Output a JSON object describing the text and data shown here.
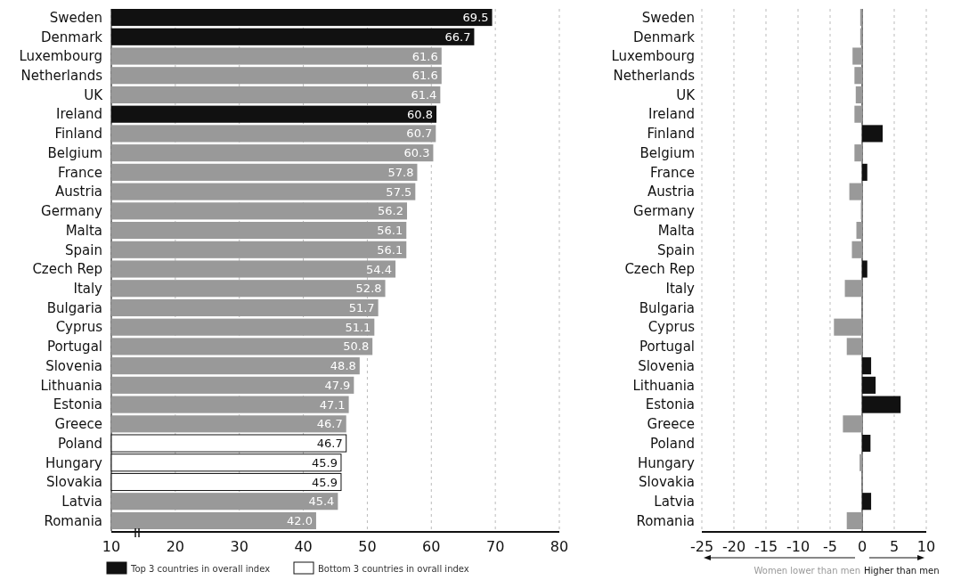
{
  "chart_data": [
    {
      "type": "bar",
      "orientation": "horizontal",
      "categories": [
        "Sweden",
        "Denmark",
        "Luxembourg",
        "Netherlands",
        "UK",
        "Ireland",
        "Finland",
        "Belgium",
        "France",
        "Austria",
        "Germany",
        "Malta",
        "Spain",
        "Czech Rep",
        "Italy",
        "Bulgaria",
        "Cyprus",
        "Portugal",
        "Slovenia",
        "Lithuania",
        "Estonia",
        "Greece",
        "Poland",
        "Hungary",
        "Slovakia",
        "Latvia",
        "Romania"
      ],
      "series": [
        {
          "name": "Top 3 countries in overall index",
          "color": "#111111",
          "values": [
            69.5,
            66.7,
            null,
            null,
            null,
            60.8,
            null,
            null,
            null,
            null,
            null,
            null,
            null,
            null,
            null,
            null,
            null,
            null,
            null,
            null,
            null,
            null,
            null,
            null,
            null,
            null,
            null
          ],
          "value_labels": [
            "69.5",
            "66.7",
            null,
            null,
            null,
            "60.8",
            null,
            null,
            null,
            null,
            null,
            null,
            null,
            null,
            null,
            null,
            null,
            null,
            null,
            null,
            null,
            null,
            null,
            null,
            null,
            null,
            null
          ]
        },
        {
          "name": "Bottom 3 countries in ovrall index",
          "color": "#ffffff",
          "values": [
            null,
            null,
            null,
            null,
            null,
            null,
            null,
            null,
            null,
            null,
            null,
            null,
            null,
            null,
            null,
            null,
            null,
            null,
            null,
            null,
            null,
            null,
            46.7,
            45.9,
            45.9,
            null,
            null
          ],
          "value_labels": [
            null,
            null,
            null,
            null,
            null,
            null,
            null,
            null,
            null,
            null,
            null,
            null,
            null,
            null,
            null,
            null,
            null,
            null,
            null,
            null,
            null,
            null,
            "46.7",
            "45.9",
            "45.9",
            null,
            null
          ]
        },
        {
          "color": "#999999",
          "values": [
            null,
            null,
            61.6,
            61.6,
            61.4,
            null,
            60.7,
            60.3,
            57.8,
            57.5,
            56.2,
            56.1,
            56.1,
            54.4,
            52.8,
            51.7,
            51.1,
            50.8,
            48.8,
            47.9,
            47.1,
            46.7,
            null,
            null,
            null,
            45.4,
            42.0
          ],
          "value_labels": [
            null,
            null,
            "61.6",
            "61.6",
            "61.4",
            null,
            "60.7",
            "60.3",
            "57.8",
            "57.5",
            "56.2",
            "56.1",
            "56.1",
            "54.4",
            "52.8",
            "51.7",
            "51.1",
            "50.8",
            "48.8",
            "47.9",
            "47.1",
            "46.7",
            null,
            null,
            null,
            "45.4",
            "42.0"
          ]
        }
      ],
      "xlim": [
        10,
        80
      ],
      "xticks": [
        10,
        20,
        30,
        40,
        50,
        60,
        70,
        80
      ],
      "grid": "x",
      "legend": "bottom"
    },
    {
      "type": "bar",
      "orientation": "horizontal",
      "categories": [
        "Sweden",
        "Denmark",
        "Luxembourg",
        "Netherlands",
        "UK",
        "Ireland",
        "Finland",
        "Belgium",
        "France",
        "Austria",
        "Germany",
        "Malta",
        "Spain",
        "Czech Rep",
        "Italy",
        "Bulgaria",
        "Cyprus",
        "Portugal",
        "Slovenia",
        "Lithuania",
        "Estonia",
        "Greece",
        "Poland",
        "Hungary",
        "Slovakia",
        "Latvia",
        "Romania"
      ],
      "values": [
        -0.3,
        -0.3,
        -1.5,
        -1.2,
        -1.0,
        -1.2,
        3.2,
        -1.2,
        0.8,
        -2.0,
        -0.2,
        -0.9,
        -1.6,
        0.8,
        -2.7,
        0,
        -4.4,
        -2.4,
        1.4,
        2.1,
        6.0,
        -3.0,
        1.3,
        -0.4,
        0,
        1.4,
        -2.4
      ],
      "colors": [
        "#999999",
        "#999999",
        "#999999",
        "#999999",
        "#999999",
        "#999999",
        "#111111",
        "#999999",
        "#111111",
        "#999999",
        "#999999",
        "#999999",
        "#999999",
        "#111111",
        "#999999",
        "#111111",
        "#999999",
        "#999999",
        "#111111",
        "#111111",
        "#111111",
        "#999999",
        "#111111",
        "#999999",
        "#111111",
        "#111111",
        "#999999"
      ],
      "xlim": [
        -25,
        10
      ],
      "xticks": [
        -25,
        -20,
        -15,
        -10,
        -5,
        0,
        5,
        10
      ],
      "grid": "x",
      "annotations": [
        "Women lower than men",
        "Higher than men"
      ]
    }
  ]
}
